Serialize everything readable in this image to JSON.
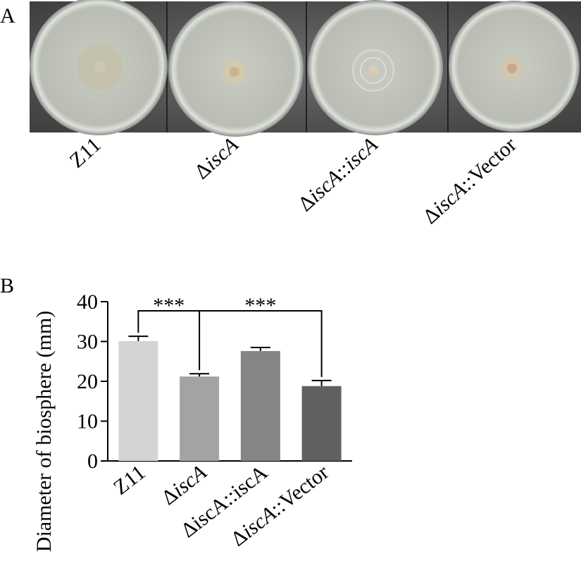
{
  "panel_a": {
    "label": "A",
    "photos": [
      "Z11",
      "ΔiscA",
      "ΔiscA::iscA",
      "ΔiscA::Vector"
    ]
  },
  "chart_data": {
    "type": "bar",
    "panel_label": "B",
    "y_label": "Diameter of biosphere (mm)",
    "categories": [
      "Z11",
      "ΔiscA",
      "ΔiscA::iscA",
      "ΔiscA::Vector"
    ],
    "values": [
      30.1,
      21.2,
      27.6,
      18.8
    ],
    "errors": [
      1.2,
      0.7,
      0.9,
      1.4
    ],
    "colors": [
      "#d4d4d4",
      "#a3a3a6",
      "#858585",
      "#606060"
    ],
    "ylim": [
      0,
      40
    ],
    "yticks": [
      0,
      10,
      20,
      30,
      40
    ],
    "grid": false,
    "annotations": [
      {
        "text": "***",
        "from": 0,
        "to": 1
      },
      {
        "text": "***",
        "from": 1,
        "to": 3
      }
    ]
  }
}
